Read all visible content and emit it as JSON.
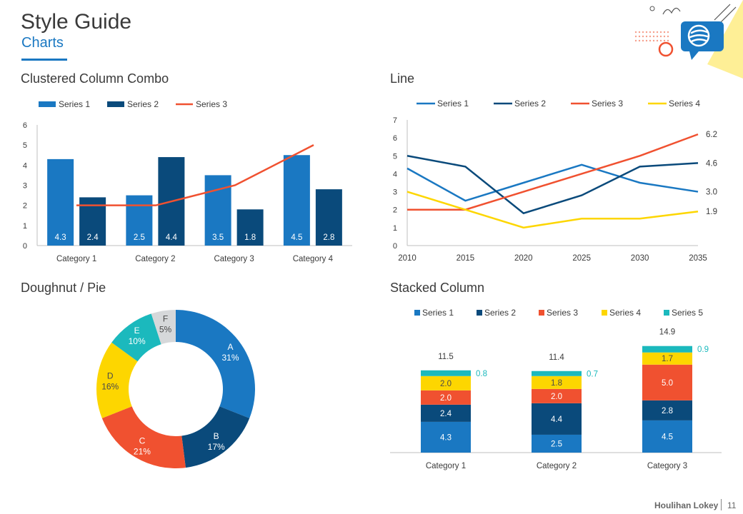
{
  "header": {
    "title": "Style Guide",
    "subtitle": "Charts"
  },
  "footer": {
    "brand": "Houlihan Lokey",
    "page": "11"
  },
  "colors": {
    "s1": "#1a78c2",
    "s2": "#0a4a7b",
    "s3": "#f05130",
    "s4": "#fdd600",
    "s5": "#1bb9bd",
    "s6": "#d6d8da",
    "axis": "#bfbfbf",
    "text": "#3a3a3a"
  },
  "chart_data": [
    {
      "id": "combo",
      "type": "bar",
      "title": "Clustered Column Combo",
      "categories": [
        "Category 1",
        "Category 2",
        "Category 3",
        "Category 4"
      ],
      "series": [
        {
          "name": "Series 1",
          "kind": "bar",
          "values": [
            4.3,
            2.5,
            3.5,
            4.5
          ]
        },
        {
          "name": "Series 2",
          "kind": "bar",
          "values": [
            2.4,
            4.4,
            1.8,
            2.8
          ]
        },
        {
          "name": "Series 3",
          "kind": "line",
          "values": [
            2,
            2,
            3,
            5
          ]
        }
      ],
      "ylim": [
        0,
        6
      ],
      "yticks": [
        0,
        1,
        2,
        3,
        4,
        5,
        6
      ],
      "legend": "top"
    },
    {
      "id": "line",
      "type": "line",
      "title": "Line",
      "x": [
        2010,
        2015,
        2020,
        2025,
        2030,
        2035
      ],
      "series": [
        {
          "name": "Series 1",
          "values": [
            4.3,
            2.5,
            3.5,
            4.5,
            3.5,
            3.0
          ],
          "end_label": "3.0"
        },
        {
          "name": "Series 2",
          "values": [
            5.0,
            4.4,
            1.8,
            2.8,
            4.4,
            4.6
          ],
          "end_label": "4.6"
        },
        {
          "name": "Series 3",
          "values": [
            2.0,
            2.0,
            3.0,
            4.0,
            5.0,
            6.2
          ],
          "end_label": "6.2"
        },
        {
          "name": "Series 4",
          "values": [
            3.0,
            2.0,
            1.0,
            1.5,
            1.5,
            1.9
          ],
          "end_label": "1.9"
        }
      ],
      "ylim": [
        0,
        7
      ],
      "yticks": [
        0,
        1,
        2,
        3,
        4,
        5,
        6,
        7
      ],
      "legend": "top"
    },
    {
      "id": "pie",
      "type": "pie",
      "title": "Doughnut / Pie",
      "slices": [
        {
          "label": "A",
          "value": 31,
          "text": "31%"
        },
        {
          "label": "B",
          "value": 17,
          "text": "17%"
        },
        {
          "label": "C",
          "value": 21,
          "text": "21%"
        },
        {
          "label": "D",
          "value": 16,
          "text": "16%"
        },
        {
          "label": "E",
          "value": 10,
          "text": "10%"
        },
        {
          "label": "F",
          "value": 5,
          "text": "5%"
        }
      ]
    },
    {
      "id": "stacked",
      "type": "bar",
      "stacked": true,
      "title": "Stacked Column",
      "categories": [
        "Category 1",
        "Category 2",
        "Category 3"
      ],
      "series": [
        {
          "name": "Series 1",
          "values": [
            4.3,
            2.5,
            4.5
          ]
        },
        {
          "name": "Series 2",
          "values": [
            2.4,
            4.4,
            2.8
          ]
        },
        {
          "name": "Series 3",
          "values": [
            2.0,
            2.0,
            5.0
          ]
        },
        {
          "name": "Series 4",
          "values": [
            2.0,
            1.8,
            1.7
          ]
        },
        {
          "name": "Series 5",
          "values": [
            0.8,
            0.7,
            0.9
          ]
        }
      ],
      "totals": [
        "11.5",
        "11.4",
        "14.9"
      ],
      "labels": [
        [
          "4.3",
          "2.4",
          "2.0",
          "2.0",
          "0.8"
        ],
        [
          "2.5",
          "4.4",
          "2.0",
          "1.8",
          "0.7"
        ],
        [
          "4.5",
          "2.8",
          "5.0",
          "1.7",
          "0.9"
        ]
      ],
      "ylim": [
        0,
        15
      ],
      "legend": "top"
    }
  ]
}
